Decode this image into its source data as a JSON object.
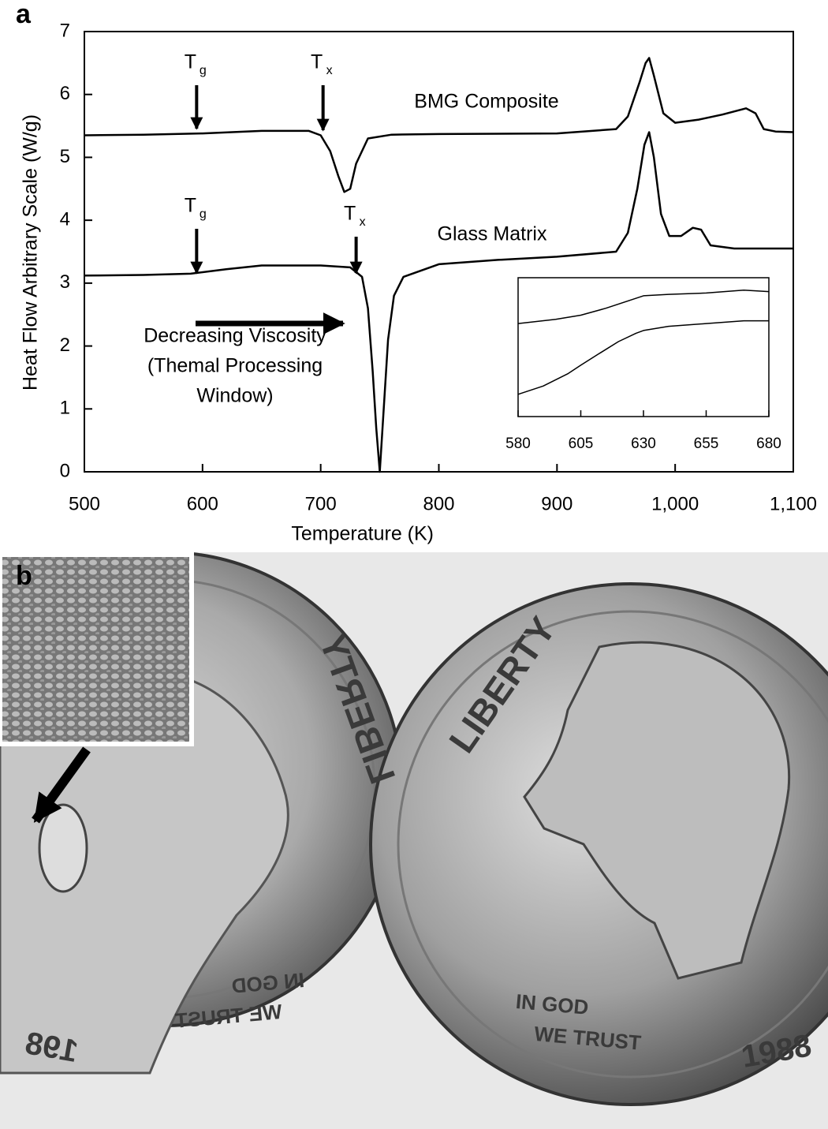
{
  "panel_labels": [
    "a",
    "b"
  ],
  "chart_data": {
    "type": "line",
    "xlabel": "Temperature (K)",
    "ylabel": "Heat Flow Arbitrary Scale (W/g)",
    "xlim": [
      500,
      1100
    ],
    "ylim": [
      0,
      7
    ],
    "xticks": [
      500,
      600,
      700,
      800,
      900,
      {
        "value": 1000,
        "label": "1,000"
      },
      {
        "value": 1100,
        "label": "1,100"
      }
    ],
    "yticks": [
      0,
      1,
      2,
      3,
      4,
      5,
      6,
      7
    ],
    "color": "#000000",
    "series": [
      {
        "name": "BMG Composite",
        "x": [
          500,
          550,
          600,
          650,
          690,
          700,
          708,
          715,
          720,
          725,
          730,
          740,
          760,
          800,
          900,
          950,
          960,
          970,
          975,
          978,
          982,
          990,
          1000,
          1020,
          1040,
          1060,
          1068,
          1075,
          1085,
          1100
        ],
        "values": [
          5.35,
          5.36,
          5.38,
          5.42,
          5.42,
          5.35,
          5.1,
          4.7,
          4.45,
          4.5,
          4.9,
          5.3,
          5.36,
          5.37,
          5.38,
          5.45,
          5.65,
          6.2,
          6.5,
          6.58,
          6.3,
          5.7,
          5.55,
          5.6,
          5.68,
          5.78,
          5.7,
          5.45,
          5.41,
          5.4
        ]
      },
      {
        "name": "Glass Matrix",
        "x": [
          500,
          550,
          590,
          620,
          650,
          700,
          725,
          735,
          740,
          744,
          747,
          750,
          753,
          757,
          762,
          770,
          800,
          850,
          900,
          950,
          960,
          968,
          974,
          978,
          982,
          988,
          995,
          1005,
          1015,
          1022,
          1030,
          1050,
          1100
        ],
        "values": [
          3.12,
          3.13,
          3.15,
          3.22,
          3.28,
          3.28,
          3.25,
          3.1,
          2.6,
          1.6,
          0.7,
          0,
          0.9,
          2.1,
          2.8,
          3.1,
          3.3,
          3.37,
          3.42,
          3.5,
          3.8,
          4.5,
          5.2,
          5.4,
          5.0,
          4.1,
          3.75,
          3.75,
          3.88,
          3.85,
          3.6,
          3.55,
          3.55
        ]
      }
    ],
    "annotations": [
      {
        "text": "T",
        "sub": "g",
        "x": 595,
        "series": 0
      },
      {
        "text": "T",
        "sub": "x",
        "x": 702,
        "series": 0
      },
      {
        "text": "T",
        "sub": "g",
        "x": 595,
        "series": 1
      },
      {
        "text": "T",
        "sub": "x",
        "x": 730,
        "series": 1
      }
    ],
    "note": [
      "Decreasing Viscosity",
      "(Themal Processing",
      "Window)"
    ],
    "inset": {
      "type": "line",
      "xlim": [
        580,
        680
      ],
      "xticks": [
        580,
        605,
        630,
        655,
        680
      ],
      "ylim": [
        0,
        1
      ],
      "series": [
        {
          "x": [
            580,
            595,
            605,
            615,
            625,
            630,
            640,
            655,
            670,
            680
          ],
          "values": [
            0.67,
            0.7,
            0.73,
            0.78,
            0.84,
            0.87,
            0.88,
            0.89,
            0.91,
            0.9
          ]
        },
        {
          "x": [
            580,
            590,
            600,
            605,
            612,
            620,
            627,
            630,
            640,
            655,
            670,
            680
          ],
          "values": [
            0.16,
            0.22,
            0.31,
            0.37,
            0.45,
            0.54,
            0.6,
            0.62,
            0.65,
            0.67,
            0.69,
            0.69
          ]
        }
      ]
    }
  },
  "photo": {
    "coin_texts": [
      "LIBERTY",
      "IN GOD",
      "WE TRUST",
      "1988",
      "LIBERTY",
      "IN GOD",
      "WE TRUST",
      "198"
    ]
  }
}
